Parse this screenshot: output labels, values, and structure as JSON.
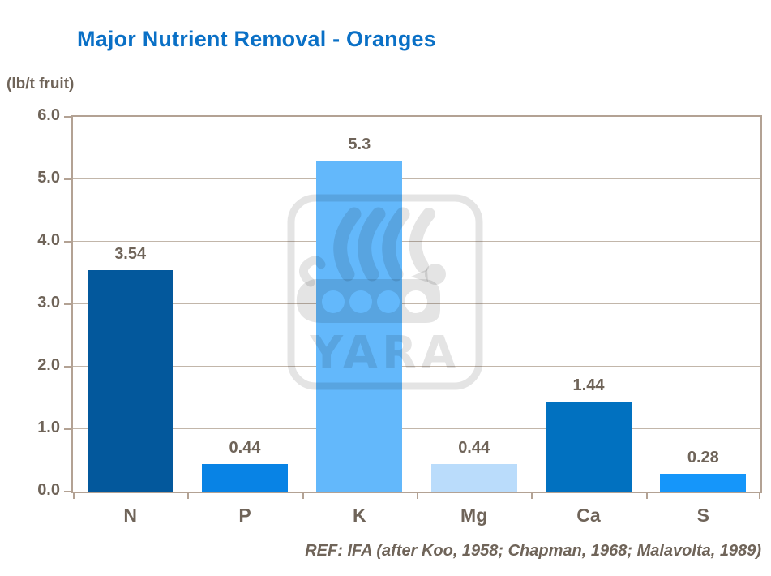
{
  "title": "Major Nutrient Removal - Oranges",
  "unit_label": "(lb/t fruit)",
  "reference": "REF: IFA (after Koo, 1958; Chapman, 1968; Malavolta, 1989)",
  "watermark": {
    "text": "YARA",
    "icon": "yara-viking-ship-logo"
  },
  "colors": {
    "title": "#0a70c6",
    "text": "#6f6459",
    "axis": "#b3a294",
    "gridline": "#c2b6aa",
    "background": "#ffffff",
    "watermark": "rgba(0,0,0,0.105)",
    "bars": [
      "#03589c",
      "#0883e5",
      "#63b8fb",
      "#badcfb",
      "#0171c0",
      "#1596fa"
    ]
  },
  "chart_data": {
    "type": "bar",
    "title": "Major Nutrient Removal - Oranges",
    "categories": [
      "N",
      "P",
      "K",
      "Mg",
      "Ca",
      "S"
    ],
    "values": [
      3.54,
      0.44,
      5.3,
      0.44,
      1.44,
      0.28
    ],
    "value_labels": [
      "3.54",
      "0.44",
      "5.3",
      "0.44",
      "1.44",
      "0.28"
    ],
    "xlabel": "",
    "ylabel": "(lb/t fruit)",
    "ylim": [
      0,
      6
    ],
    "ytick_labels": [
      "0.0",
      "1.0",
      "2.0",
      "3.0",
      "4.0",
      "5.0",
      "6.0"
    ],
    "grid": true,
    "legend": false,
    "source": "REF: IFA (after Koo, 1958; Chapman, 1968; Malavolta, 1989)"
  }
}
